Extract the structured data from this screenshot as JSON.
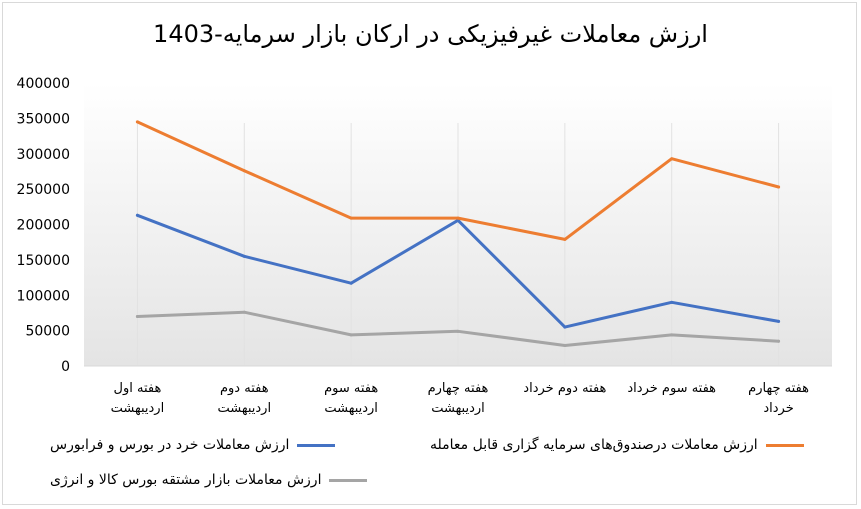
{
  "chart_data": {
    "type": "line",
    "title": "ارزش معاملات غیرفیزیکی در ارکان بازار سرمایه-1403",
    "ylim": [
      0,
      400000
    ],
    "yticks": [
      "0",
      "50000",
      "100000",
      "150000",
      "200000",
      "250000",
      "300000",
      "350000",
      "400000"
    ],
    "categories": [
      [
        "هفته اول",
        "اردیبهشت"
      ],
      [
        "هفته دوم",
        "اردیبهشت"
      ],
      [
        "هفته سوم",
        "اردیبهشت"
      ],
      [
        "هفته چهارم",
        "اردیبهشت"
      ],
      [
        "هفته دوم خرداد"
      ],
      [
        "هفته سوم خرداد"
      ],
      [
        "هفته چهارم",
        "خرداد"
      ]
    ],
    "grid": true,
    "legend_position": "bottom",
    "series": [
      {
        "name": "ارزش معاملات خرد در بورس و فرابورس",
        "color": "#4472c4",
        "values": [
          213000,
          155000,
          117000,
          206000,
          55000,
          90000,
          63000
        ]
      },
      {
        "name": "ارزش معاملات درصندوق‌های سرمایه گزاری قابل معامله",
        "color": "#ed7d31",
        "values": [
          345000,
          276000,
          209000,
          209000,
          179000,
          293000,
          253000
        ]
      },
      {
        "name": "ارزش معاملات بازار مشتقه بورس کالا و انرژی",
        "color": "#a5a5a5",
        "values": [
          70000,
          76000,
          44000,
          49000,
          29000,
          44000,
          35000
        ]
      }
    ]
  }
}
